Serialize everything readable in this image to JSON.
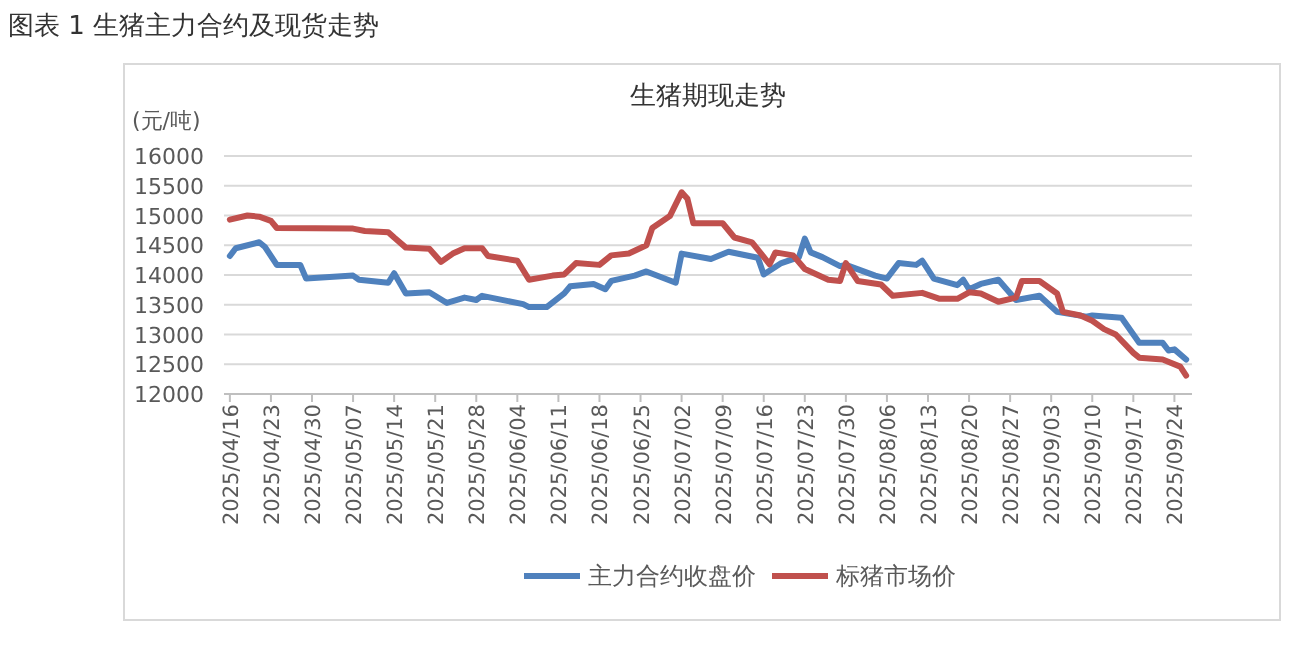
{
  "chart_data": {
    "type": "line",
    "title": "图表 1 生猪主力合约及现货走势",
    "subtitle": "生猪期现走势",
    "ylabel": "(元/吨)",
    "xlim": [
      "2025-04-15",
      "2025-09-27"
    ],
    "xticks": [
      {
        "value": "2025-04-16",
        "label": "2025/04/16"
      },
      {
        "value": "2025-04-23",
        "label": "2025/04/23"
      },
      {
        "value": "2025-04-30",
        "label": "2025/04/30"
      },
      {
        "value": "2025-05-07",
        "label": "2025/05/07"
      },
      {
        "value": "2025-05-14",
        "label": "2025/05/14"
      },
      {
        "value": "2025-05-21",
        "label": "2025/05/21"
      },
      {
        "value": "2025-05-28",
        "label": "2025/05/28"
      },
      {
        "value": "2025-06-04",
        "label": "2025/06/04"
      },
      {
        "value": "2025-06-11",
        "label": "2025/06/11"
      },
      {
        "value": "2025-06-18",
        "label": "2025/06/18"
      },
      {
        "value": "2025-06-25",
        "label": "2025/06/25"
      },
      {
        "value": "2025-07-02",
        "label": "2025/07/02"
      },
      {
        "value": "2025-07-09",
        "label": "2025/07/09"
      },
      {
        "value": "2025-07-16",
        "label": "2025/07/16"
      },
      {
        "value": "2025-07-23",
        "label": "2025/07/23"
      },
      {
        "value": "2025-07-30",
        "label": "2025/07/30"
      },
      {
        "value": "2025-08-06",
        "label": "2025/08/06"
      },
      {
        "value": "2025-08-13",
        "label": "2025/08/13"
      },
      {
        "value": "2025-08-20",
        "label": "2025/08/20"
      },
      {
        "value": "2025-08-27",
        "label": "2025/08/27"
      },
      {
        "value": "2025-09-03",
        "label": "2025/09/03"
      },
      {
        "value": "2025-09-10",
        "label": "2025/09/10"
      },
      {
        "value": "2025-09-17",
        "label": "2025/09/17"
      },
      {
        "value": "2025-09-24",
        "label": "2025/09/24"
      }
    ],
    "ylim": [
      12000,
      16000
    ],
    "yticks": [
      12000,
      12500,
      13000,
      13500,
      14000,
      14500,
      15000,
      15500,
      16000
    ],
    "grid": "y",
    "legend": "bottom",
    "marker": "none",
    "line_style": "solid",
    "series": [
      {
        "name": "主力合约收盘价",
        "color": "#4f81bd",
        "x": [
          "2025-04-16",
          "2025-04-17",
          "2025-04-21",
          "2025-04-22",
          "2025-04-24",
          "2025-04-28",
          "2025-04-29",
          "2025-05-07",
          "2025-05-08",
          "2025-05-13",
          "2025-05-14",
          "2025-05-16",
          "2025-05-20",
          "2025-05-23",
          "2025-05-26",
          "2025-05-28",
          "2025-05-29",
          "2025-06-05",
          "2025-06-06",
          "2025-06-09",
          "2025-06-12",
          "2025-06-13",
          "2025-06-17",
          "2025-06-19",
          "2025-06-20",
          "2025-06-24",
          "2025-06-26",
          "2025-07-01",
          "2025-07-02",
          "2025-07-07",
          "2025-07-10",
          "2025-07-15",
          "2025-07-16",
          "2025-07-19",
          "2025-07-22",
          "2025-07-23",
          "2025-07-24",
          "2025-07-26",
          "2025-07-29",
          "2025-07-30",
          "2025-08-04",
          "2025-08-06",
          "2025-08-08",
          "2025-08-11",
          "2025-08-12",
          "2025-08-14",
          "2025-08-18",
          "2025-08-19",
          "2025-08-20",
          "2025-08-22",
          "2025-08-25",
          "2025-08-28",
          "2025-09-01",
          "2025-09-04",
          "2025-09-09",
          "2025-09-10",
          "2025-09-15",
          "2025-09-18",
          "2025-09-22",
          "2025-09-23",
          "2025-09-24",
          "2025-09-26"
        ],
        "values": [
          14320,
          14450,
          14550,
          14470,
          14170,
          14170,
          13940,
          13990,
          13920,
          13870,
          14030,
          13690,
          13710,
          13530,
          13620,
          13580,
          13650,
          13510,
          13460,
          13460,
          13690,
          13810,
          13850,
          13760,
          13900,
          13990,
          14060,
          13870,
          14360,
          14270,
          14390,
          14290,
          14010,
          14200,
          14300,
          14610,
          14380,
          14300,
          14150,
          14170,
          13990,
          13940,
          14200,
          14170,
          14240,
          13940,
          13830,
          13920,
          13760,
          13850,
          13920,
          13580,
          13650,
          13380,
          13300,
          13320,
          13280,
          12860,
          12860,
          12730,
          12750,
          12580
        ]
      },
      {
        "name": "标猪市场价",
        "color": "#c0504d",
        "x": [
          "2025-04-16",
          "2025-04-19",
          "2025-04-21",
          "2025-04-23",
          "2025-04-24",
          "2025-05-07",
          "2025-05-09",
          "2025-05-13",
          "2025-05-14",
          "2025-05-16",
          "2025-05-20",
          "2025-05-22",
          "2025-05-24",
          "2025-05-26",
          "2025-05-29",
          "2025-05-30",
          "2025-06-04",
          "2025-06-06",
          "2025-06-10",
          "2025-06-12",
          "2025-06-14",
          "2025-06-18",
          "2025-06-20",
          "2025-06-23",
          "2025-06-26",
          "2025-06-27",
          "2025-06-30",
          "2025-07-02",
          "2025-07-03",
          "2025-07-04",
          "2025-07-09",
          "2025-07-11",
          "2025-07-14",
          "2025-07-17",
          "2025-07-18",
          "2025-07-21",
          "2025-07-23",
          "2025-07-27",
          "2025-07-29",
          "2025-07-30",
          "2025-08-01",
          "2025-08-05",
          "2025-08-07",
          "2025-08-12",
          "2025-08-15",
          "2025-08-18",
          "2025-08-20",
          "2025-08-22",
          "2025-08-25",
          "2025-08-28",
          "2025-08-29",
          "2025-09-01",
          "2025-09-04",
          "2025-09-05",
          "2025-09-08",
          "2025-09-10",
          "2025-09-12",
          "2025-09-14",
          "2025-09-17",
          "2025-09-18",
          "2025-09-22",
          "2025-09-25",
          "2025-09-26"
        ],
        "values": [
          14930,
          15000,
          14980,
          14910,
          14790,
          14780,
          14740,
          14720,
          14630,
          14460,
          14440,
          14220,
          14360,
          14450,
          14450,
          14320,
          14240,
          13920,
          13990,
          14010,
          14200,
          14170,
          14330,
          14360,
          14500,
          14790,
          14990,
          15390,
          15280,
          14870,
          14870,
          14630,
          14550,
          14180,
          14380,
          14330,
          14100,
          13920,
          13900,
          14200,
          13900,
          13840,
          13650,
          13700,
          13600,
          13600,
          13710,
          13690,
          13550,
          13620,
          13900,
          13900,
          13690,
          13380,
          13320,
          13230,
          13090,
          13000,
          12690,
          12610,
          12580,
          12460,
          12310
        ]
      }
    ]
  }
}
